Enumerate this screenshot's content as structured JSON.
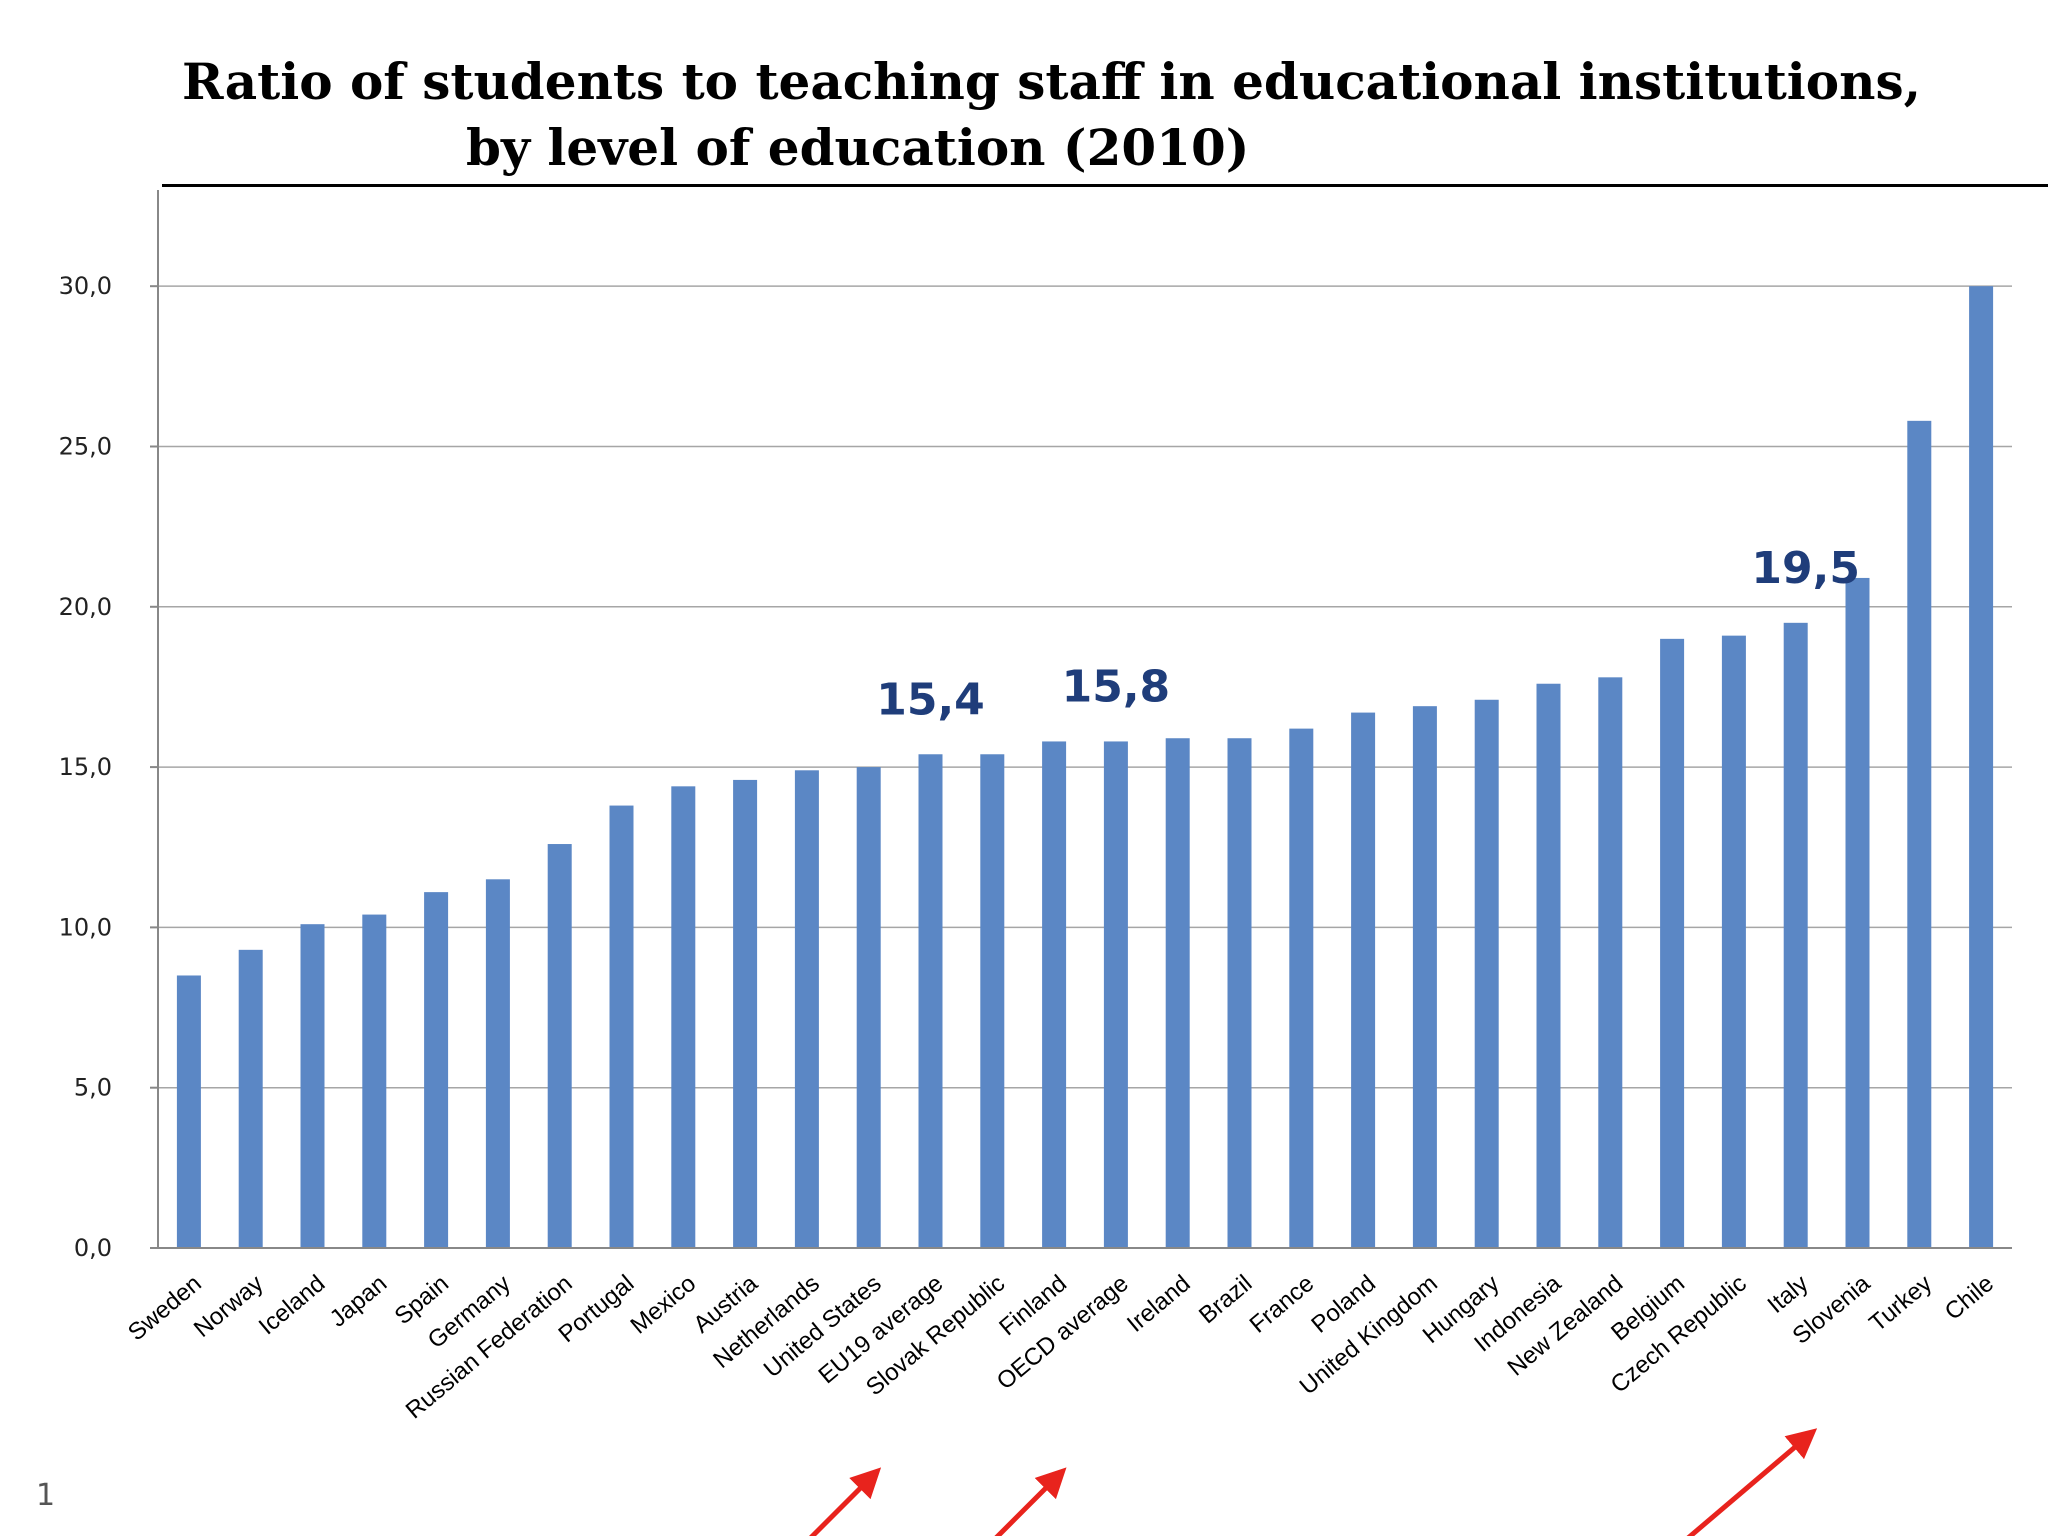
{
  "page_number": "1",
  "chart_data": {
    "type": "bar",
    "title": "Ratio of students to teaching staff in educational institutions,",
    "subtitle": "by level of education (2010)",
    "xlabel": "",
    "ylabel": "",
    "ylim": [
      0,
      33
    ],
    "yticks": [
      "0,0",
      "5,0",
      "10,0",
      "15,0",
      "20,0",
      "25,0",
      "30,0"
    ],
    "grid": true,
    "bar_color": "#5b87c5",
    "annotation_color": "#1f3d7a",
    "arrow_color": "#e8231d",
    "categories": [
      "Sweden",
      "Norway",
      "Iceland",
      "Japan",
      "Spain",
      "Germany",
      "Russian Federation",
      "Portugal",
      "Mexico",
      "Austria",
      "Netherlands",
      "United States",
      "EU19 average",
      "Slovak Republic",
      "Finland",
      "OECD average",
      "Ireland",
      "Brazil",
      "France",
      "Poland",
      "United Kingdom",
      "Hungary",
      "Indonesia",
      "New Zealand",
      "Belgium",
      "Czech Republic",
      "Italy",
      "Slovenia",
      "Turkey",
      "Chile"
    ],
    "values": [
      8.5,
      9.3,
      10.1,
      10.4,
      11.1,
      11.5,
      12.6,
      13.8,
      14.4,
      14.6,
      14.9,
      15.0,
      15.4,
      15.4,
      15.8,
      15.8,
      15.9,
      15.9,
      16.2,
      16.7,
      16.9,
      17.1,
      17.6,
      17.8,
      19.0,
      19.1,
      19.5,
      20.9,
      25.8,
      30.0
    ],
    "annotations": [
      {
        "category": "EU19 average",
        "label": "15,4"
      },
      {
        "category": "OECD average",
        "label": "15,8"
      },
      {
        "category": "Italy",
        "label": "19,5"
      }
    ],
    "arrows": [
      "EU19 average",
      "OECD average",
      "Italy"
    ]
  }
}
